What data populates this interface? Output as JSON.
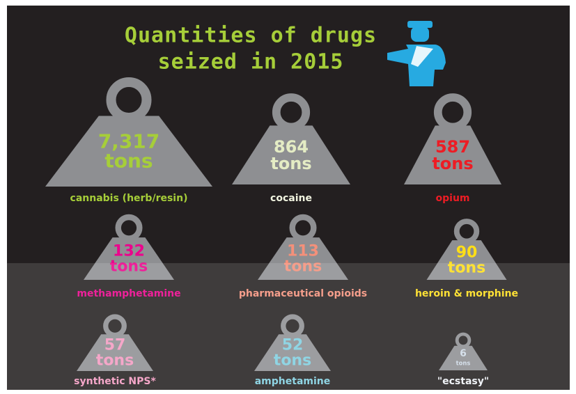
{
  "title": {
    "line1": "Quantities of drugs",
    "line2": "seized in 2015"
  },
  "items": [
    {
      "value": "7,317",
      "unit": "tons",
      "label": "cannabis (herb/resin)",
      "color": "#a6ce39",
      "label_color": "#a6ce39"
    },
    {
      "value": "864",
      "unit": "tons",
      "label": "cocaine",
      "color": "#e4ecc4",
      "label_color": "#f1f4e0"
    },
    {
      "value": "587",
      "unit": "tons",
      "label": "opium",
      "color": "#ed1c24",
      "label_color": "#ed1c24"
    },
    {
      "value": "132",
      "unit": "tons",
      "label": "methamphetamine",
      "color": "#ec008c",
      "label_color": "#ec008c"
    },
    {
      "value": "113",
      "unit": "tons",
      "label": "pharmaceutical opioids",
      "color": "#f4907a",
      "label_color": "#f4907a"
    },
    {
      "value": "90",
      "unit": "tons",
      "label": "heroin & morphine",
      "color": "#ffde17",
      "label_color": "#ffde17"
    },
    {
      "value": "57",
      "unit": "tons",
      "label": "synthetic NPS*",
      "color": "#f49ac1",
      "label_color": "#f49ac1"
    },
    {
      "value": "52",
      "unit": "tons",
      "label": "amphetamine",
      "color": "#7fcfe0",
      "label_color": "#7fcfe0"
    },
    {
      "value": "6",
      "unit": "tons",
      "label": "\"ecstasy\"",
      "color": "#d0dce8",
      "label_color": "#eef2f6"
    }
  ]
}
